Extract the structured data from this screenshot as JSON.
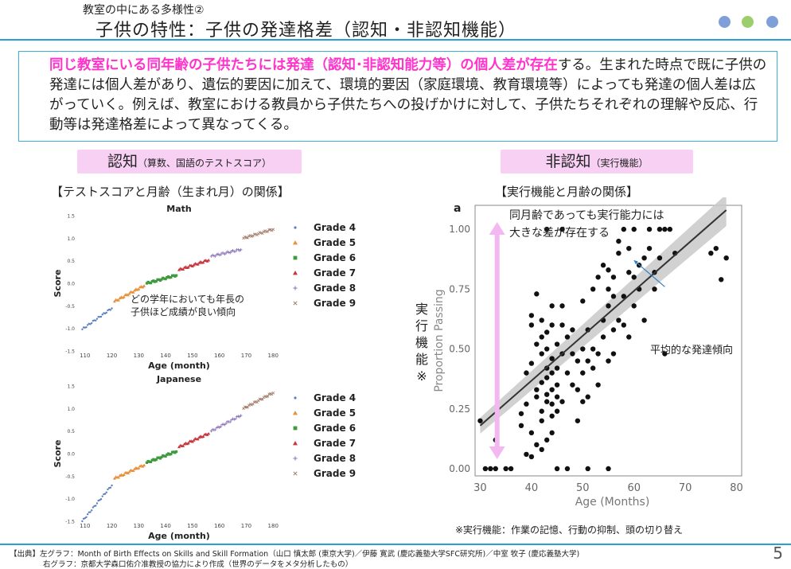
{
  "header": {
    "subtitle": "教室の中にある多様性②",
    "title": "子供の特性：子供の発達格差（認知・非認知機能）",
    "dots": [
      "#7f9fd8",
      "#9ccf6b",
      "#7f9fd8"
    ]
  },
  "intro": {
    "highlight": "同じ教室にいる同年齢の子供たちには発達（認知･非認知能力等）の個人差が存在",
    "rest": "する。生まれた時点で既に子供の発達には個人差があり、遺伝的要因に加えて、環境的要因（家庭環境、教育環境等）によっても発達の個人差は広がっていく。例えば、教室における教員から子供たちへの投げかけに対して、子供たちそれぞれの理解や反応、行動等は発達格差によって異なってくる。"
  },
  "left": {
    "pill_main": "認知",
    "pill_sub": "（算数、国語のテストスコア）",
    "heading": "【テストスコアと月齢（生まれ月）の関係】",
    "annotation_line1": "どの学年においても年長の",
    "annotation_line2": "子供ほど成績が良い傾向"
  },
  "right": {
    "pill_main": "非認知",
    "pill_sub": "（実行機能）",
    "heading": "【実行機能と月齢の関係】",
    "panel_label": "a",
    "annotation_line1": "同月齢であっても実行能力には",
    "annotation_line2": "大きな差が存在する",
    "trend_label": "平均的な発達傾向",
    "side_label": [
      "実",
      "行",
      "機",
      "能",
      "※"
    ],
    "note": "※実行機能：作業の記憶、行動の抑制、頭の切り替え"
  },
  "footer": {
    "line1": "【出典】左グラフ：Month of Birth Effects on Skills  and Skill Formation（山口 慎太郎 (東京大学)／伊藤 寛武 (慶応義塾大学SFC研究所)／中室 牧子 (慶応義塾大学)",
    "line2": "右グラフ：京都大学森口佑介准教授の協力により作成（世界のデータをメタ分析したもの）",
    "page": "5"
  },
  "chart_data": [
    {
      "type": "scatter",
      "title": "Math",
      "xlabel": "Age (month)",
      "ylabel": "Score",
      "xlim": [
        108,
        182
      ],
      "ylim": [
        -1.5,
        1.5
      ],
      "xticks": [
        110,
        120,
        130,
        140,
        150,
        160,
        170,
        180
      ],
      "yticks": [
        -1.5,
        -1.0,
        -0.5,
        0.0,
        0.5,
        1.0,
        1.5
      ],
      "legend_position": "right",
      "series": [
        {
          "name": "Grade 4",
          "color": "#5b7fbf",
          "marker": "dot",
          "x_range": [
            109,
            120
          ],
          "y_range": [
            -1.02,
            -0.55
          ]
        },
        {
          "name": "Grade 5",
          "color": "#e8913a",
          "marker": "triangle",
          "x_range": [
            121,
            132
          ],
          "y_range": [
            -0.4,
            -0.05
          ]
        },
        {
          "name": "Grade 6",
          "color": "#3d9a3d",
          "marker": "square",
          "x_range": [
            133,
            144
          ],
          "y_range": [
            0.0,
            0.18
          ]
        },
        {
          "name": "Grade 7",
          "color": "#c8373d",
          "marker": "triangle",
          "x_range": [
            145,
            156
          ],
          "y_range": [
            0.3,
            0.52
          ]
        },
        {
          "name": "Grade 8",
          "color": "#8a70b8",
          "marker": "plus",
          "x_range": [
            157,
            168
          ],
          "y_range": [
            0.6,
            0.75
          ]
        },
        {
          "name": "Grade 9",
          "color": "#a07a66",
          "marker": "cross",
          "x_range": [
            169,
            180
          ],
          "y_range": [
            1.0,
            1.2
          ]
        }
      ]
    },
    {
      "type": "scatter",
      "title": "Japanese",
      "xlabel": "Age (month)",
      "ylabel": "Score",
      "xlim": [
        108,
        182
      ],
      "ylim": [
        -1.5,
        1.5
      ],
      "xticks": [
        110,
        120,
        130,
        140,
        150,
        160,
        170,
        180
      ],
      "yticks": [
        -1.5,
        -1.0,
        -0.5,
        0.0,
        0.5,
        1.0,
        1.5
      ],
      "legend_position": "right",
      "series": [
        {
          "name": "Grade 4",
          "color": "#5b7fbf",
          "marker": "dot",
          "x_range": [
            109,
            120
          ],
          "y_range": [
            -1.5,
            -0.7
          ]
        },
        {
          "name": "Grade 5",
          "color": "#e8913a",
          "marker": "triangle",
          "x_range": [
            121,
            132
          ],
          "y_range": [
            -0.55,
            -0.25
          ]
        },
        {
          "name": "Grade 6",
          "color": "#3d9a3d",
          "marker": "square",
          "x_range": [
            133,
            144
          ],
          "y_range": [
            -0.2,
            0.05
          ]
        },
        {
          "name": "Grade 7",
          "color": "#c8373d",
          "marker": "triangle",
          "x_range": [
            145,
            156
          ],
          "y_range": [
            0.15,
            0.45
          ]
        },
        {
          "name": "Grade 8",
          "color": "#8a70b8",
          "marker": "plus",
          "x_range": [
            157,
            168
          ],
          "y_range": [
            0.5,
            0.85
          ]
        },
        {
          "name": "Grade 9",
          "color": "#a07a66",
          "marker": "cross",
          "x_range": [
            169,
            180
          ],
          "y_range": [
            1.0,
            1.35
          ]
        }
      ]
    },
    {
      "type": "scatter",
      "title": "",
      "xlabel": "Age (Months)",
      "ylabel": "Proportion Passing",
      "xlim": [
        29,
        81
      ],
      "ylim": [
        -0.03,
        1.1
      ],
      "xticks": [
        30,
        40,
        50,
        60,
        70,
        80
      ],
      "yticks": [
        0.0,
        0.25,
        0.5,
        0.75,
        1.0
      ],
      "trend_line": {
        "x": [
          30,
          78
        ],
        "y": [
          0.18,
          1.08
        ]
      },
      "points": [
        [
          31,
          0.0
        ],
        [
          32,
          0.0
        ],
        [
          33,
          0.0
        ],
        [
          33,
          0.12
        ],
        [
          35,
          0.0
        ],
        [
          36,
          0.0
        ],
        [
          45,
          0.0
        ],
        [
          47,
          0.0
        ],
        [
          51,
          0.0
        ],
        [
          55,
          0.0
        ],
        [
          30,
          0.2
        ],
        [
          38,
          0.18
        ],
        [
          38,
          0.23
        ],
        [
          39,
          0.06
        ],
        [
          39,
          0.27
        ],
        [
          39,
          0.4
        ],
        [
          40,
          0.05
        ],
        [
          40,
          0.15
        ],
        [
          40,
          0.44
        ],
        [
          40,
          0.6
        ],
        [
          40,
          0.64
        ],
        [
          41,
          0.1
        ],
        [
          41,
          0.3
        ],
        [
          41,
          0.33
        ],
        [
          41,
          0.52
        ],
        [
          41,
          0.73
        ],
        [
          42,
          0.08
        ],
        [
          42,
          0.2
        ],
        [
          42,
          0.24
        ],
        [
          42,
          0.36
        ],
        [
          42,
          0.48
        ],
        [
          42,
          0.55
        ],
        [
          42,
          0.62
        ],
        [
          43,
          0.12
        ],
        [
          43,
          0.28
        ],
        [
          43,
          0.31
        ],
        [
          43,
          0.38
        ],
        [
          43,
          0.42
        ],
        [
          43,
          0.5
        ],
        [
          43,
          0.57
        ],
        [
          43,
          1.0
        ],
        [
          44,
          0.15
        ],
        [
          44,
          0.22
        ],
        [
          44,
          0.27
        ],
        [
          44,
          0.33
        ],
        [
          44,
          0.4
        ],
        [
          44,
          0.46
        ],
        [
          44,
          0.6
        ],
        [
          44,
          0.68
        ],
        [
          45,
          0.24
        ],
        [
          45,
          0.3
        ],
        [
          45,
          0.35
        ],
        [
          45,
          0.42
        ],
        [
          45,
          0.52
        ],
        [
          46,
          0.28
        ],
        [
          46,
          0.48
        ],
        [
          46,
          0.6
        ],
        [
          46,
          0.68
        ],
        [
          46,
          1.0
        ],
        [
          47,
          0.4
        ],
        [
          47,
          0.55
        ],
        [
          48,
          0.35
        ],
        [
          48,
          0.48
        ],
        [
          48,
          0.58
        ],
        [
          49,
          0.2
        ],
        [
          49,
          0.33
        ],
        [
          49,
          0.45
        ],
        [
          50,
          0.28
        ],
        [
          50,
          0.4
        ],
        [
          50,
          0.5
        ],
        [
          50,
          0.7
        ],
        [
          51,
          0.3
        ],
        [
          51,
          0.45
        ],
        [
          51,
          0.58
        ],
        [
          52,
          0.42
        ],
        [
          52,
          0.5
        ],
        [
          52,
          0.75
        ],
        [
          53,
          0.35
        ],
        [
          53,
          0.48
        ],
        [
          53,
          0.8
        ],
        [
          54,
          0.55
        ],
        [
          54,
          0.62
        ],
        [
          54,
          0.85
        ],
        [
          55,
          0.45
        ],
        [
          55,
          0.68
        ],
        [
          55,
          0.75
        ],
        [
          55,
          0.83
        ],
        [
          56,
          0.48
        ],
        [
          56,
          0.58
        ],
        [
          56,
          0.72
        ],
        [
          56,
          0.8
        ],
        [
          57,
          0.9
        ],
        [
          57,
          0.95
        ],
        [
          57,
          0.62
        ],
        [
          58,
          0.6
        ],
        [
          58,
          0.72
        ],
        [
          58,
          1.0
        ],
        [
          59,
          0.55
        ],
        [
          59,
          0.82
        ],
        [
          59,
          0.92
        ],
        [
          60,
          0.68
        ],
        [
          60,
          0.8
        ],
        [
          60,
          1.0
        ],
        [
          61,
          0.75
        ],
        [
          61,
          0.85
        ],
        [
          62,
          0.62
        ],
        [
          62,
          0.88
        ],
        [
          63,
          0.92
        ],
        [
          63,
          1.0
        ],
        [
          64,
          0.75
        ],
        [
          64,
          0.82
        ],
        [
          65,
          1.0
        ],
        [
          65,
          0.88
        ],
        [
          66,
          0.48
        ],
        [
          66,
          1.0
        ],
        [
          67,
          1.0
        ],
        [
          68,
          0.9
        ],
        [
          75,
          0.9
        ],
        [
          76,
          0.92
        ],
        [
          77,
          0.79
        ],
        [
          78,
          0.88
        ]
      ]
    }
  ]
}
